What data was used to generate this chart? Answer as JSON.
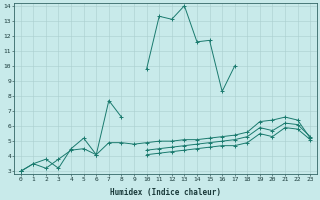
{
  "xlabel": "Humidex (Indice chaleur)",
  "x_values": [
    0,
    1,
    2,
    3,
    4,
    5,
    6,
    7,
    8,
    9,
    10,
    11,
    12,
    13,
    14,
    15,
    16,
    17,
    18,
    19,
    20,
    21,
    22,
    23
  ],
  "line1": [
    3.0,
    3.5,
    3.8,
    3.2,
    4.5,
    5.2,
    4.1,
    7.7,
    6.6,
    null,
    9.8,
    13.3,
    13.1,
    14.0,
    11.6,
    11.7,
    8.3,
    10.0,
    null,
    null,
    null,
    null,
    null,
    null
  ],
  "line2": [
    3.0,
    3.5,
    3.2,
    3.8,
    4.4,
    4.5,
    4.1,
    4.9,
    4.9,
    4.8,
    4.9,
    5.0,
    5.0,
    5.1,
    5.1,
    5.2,
    5.3,
    5.4,
    5.6,
    6.3,
    6.4,
    6.6,
    6.4,
    5.2
  ],
  "line3": [
    3.0,
    null,
    null,
    null,
    null,
    null,
    null,
    null,
    null,
    null,
    4.4,
    4.5,
    4.6,
    4.7,
    4.8,
    4.9,
    5.0,
    5.1,
    5.3,
    5.9,
    5.7,
    6.2,
    6.1,
    5.3
  ],
  "line4": [
    3.0,
    null,
    null,
    null,
    null,
    null,
    null,
    null,
    null,
    null,
    4.1,
    4.2,
    4.3,
    4.4,
    4.5,
    4.6,
    4.7,
    4.7,
    4.9,
    5.5,
    5.3,
    5.9,
    5.8,
    5.1
  ],
  "line_color": "#1a7a6e",
  "bg_color": "#c8eaea",
  "grid_color": "#aacfcf",
  "ylim": [
    3,
    14
  ],
  "xlim": [
    -0.5,
    23.5
  ],
  "yticks": [
    3,
    4,
    5,
    6,
    7,
    8,
    9,
    10,
    11,
    12,
    13,
    14
  ],
  "xticks": [
    0,
    1,
    2,
    3,
    4,
    5,
    6,
    7,
    8,
    9,
    10,
    11,
    12,
    13,
    14,
    15,
    16,
    17,
    18,
    19,
    20,
    21,
    22,
    23
  ]
}
